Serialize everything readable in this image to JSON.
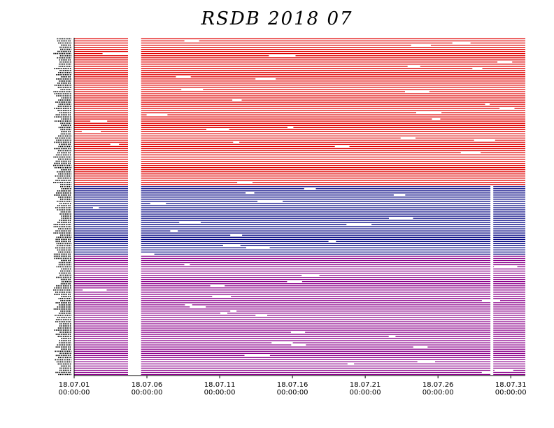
{
  "title": "RSDB  2018  07",
  "chart_data": {
    "type": "timeline",
    "title": "RSDB  2018  07",
    "x_range": [
      "2018-07-01T00:00:00",
      "2018-08-01T00:00:00"
    ],
    "x_ticks": [
      {
        "date": "18.07.01",
        "time": "00:00:00",
        "day": 0
      },
      {
        "date": "18.07.06",
        "time": "00:00:00",
        "day": 5
      },
      {
        "date": "18.07.11",
        "time": "00:00:00",
        "day": 10
      },
      {
        "date": "18.07.16",
        "time": "00:00:00",
        "day": 15
      },
      {
        "date": "18.07.21",
        "time": "00:00:00",
        "day": 20
      },
      {
        "date": "18.07.26",
        "time": "00:00:00",
        "day": 25
      },
      {
        "date": "18.07.31",
        "time": "00:00:00",
        "day": 30
      }
    ],
    "groups": [
      {
        "color": "#e00000",
        "rows": 70,
        "outages": [
          [
            3.7,
            4.6
          ]
        ]
      },
      {
        "color": "#000080",
        "rows": 33,
        "outages": [
          [
            3.7,
            4.6
          ],
          [
            28.6,
            28.8
          ]
        ]
      },
      {
        "color": "#8b008b",
        "rows": 57,
        "outages": [
          [
            3.7,
            4.6
          ],
          [
            28.6,
            28.8
          ]
        ]
      }
    ],
    "y_tick_labels_legible": false,
    "grid": false
  }
}
